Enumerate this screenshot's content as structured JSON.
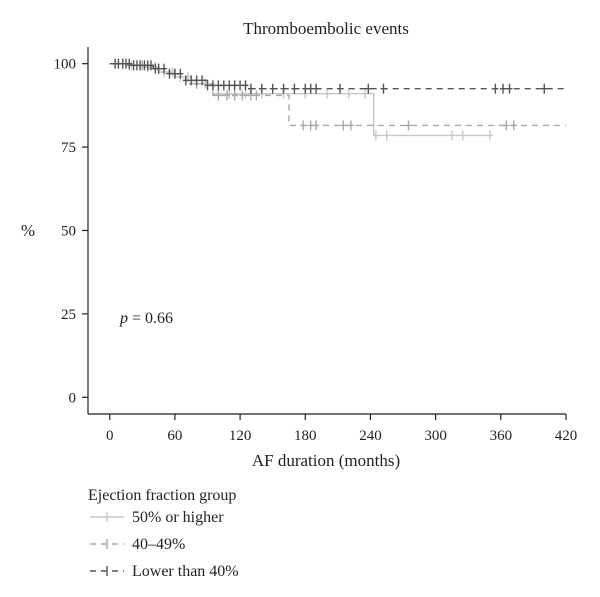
{
  "chart_data": {
    "type": "line",
    "subtype": "kaplan-meier",
    "title": "Thromboembolic events",
    "xlabel": "AF duration (months)",
    "ylabel": "%",
    "xlim": [
      -20,
      420
    ],
    "ylim": [
      -5,
      105
    ],
    "xticks": [
      0,
      60,
      120,
      180,
      240,
      300,
      360,
      420
    ],
    "yticks": [
      0,
      25,
      50,
      75,
      100
    ],
    "grid": false,
    "annotation": {
      "p_label": "p",
      "p_text": " = 0.66"
    },
    "legend": {
      "title": "Ejection fraction group",
      "placement": "bottom-left"
    },
    "series": [
      {
        "name": "50% or higher",
        "color": "#c8c8c8",
        "dash": "solid",
        "steps": [
          [
            0,
            100
          ],
          [
            15,
            99.5
          ],
          [
            30,
            99
          ],
          [
            45,
            97.5
          ],
          [
            60,
            96
          ],
          [
            75,
            94
          ],
          [
            95,
            91
          ],
          [
            170,
            91
          ],
          [
            243,
            91
          ],
          [
            243,
            78.5
          ],
          [
            350,
            78.5
          ]
        ],
        "censored": [
          5,
          12,
          20,
          28,
          35,
          42,
          50,
          58,
          65,
          72,
          80,
          88,
          100,
          110,
          125,
          140,
          160,
          180,
          200,
          220,
          235,
          245,
          255,
          315,
          325,
          350
        ]
      },
      {
        "name": "40–49%",
        "color": "#a8a8a8",
        "dash": "dashed",
        "steps": [
          [
            0,
            100
          ],
          [
            15,
            99.5
          ],
          [
            35,
            98.5
          ],
          [
            50,
            97
          ],
          [
            70,
            94
          ],
          [
            95,
            90.5
          ],
          [
            165,
            90.5
          ],
          [
            165,
            81.5
          ],
          [
            420,
            81.5
          ]
        ],
        "censored": [
          8,
          18,
          30,
          45,
          60,
          80,
          100,
          108,
          115,
          122,
          130,
          135,
          178,
          185,
          190,
          215,
          222,
          275,
          365,
          372
        ]
      },
      {
        "name": "Lower than 40%",
        "color": "#555555",
        "dash": "dashed",
        "steps": [
          [
            0,
            100
          ],
          [
            20,
            99.5
          ],
          [
            40,
            98.5
          ],
          [
            55,
            97
          ],
          [
            70,
            95
          ],
          [
            90,
            93.5
          ],
          [
            130,
            92.5
          ],
          [
            420,
            92.5
          ]
        ],
        "censored": [
          5,
          8,
          12,
          15,
          18,
          22,
          25,
          28,
          32,
          35,
          38,
          42,
          45,
          50,
          55,
          60,
          65,
          70,
          75,
          80,
          85,
          90,
          95,
          100,
          105,
          110,
          115,
          120,
          125,
          130,
          140,
          150,
          160,
          170,
          180,
          185,
          190,
          212,
          238,
          252,
          355,
          362,
          368,
          400
        ]
      }
    ]
  }
}
